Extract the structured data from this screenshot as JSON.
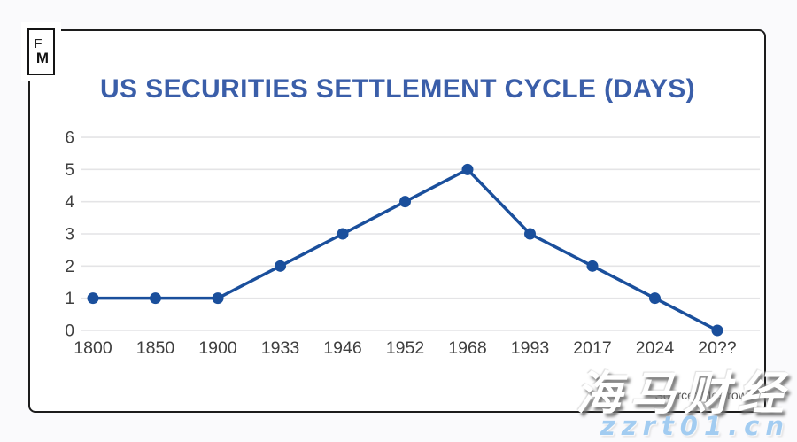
{
  "page": {
    "background": "#FAFAFC"
  },
  "logo": {
    "line1": "F",
    "line2": "M"
  },
  "chart_data": {
    "type": "line",
    "title": "US SECURITIES SETTLEMENT CYCLE (DAYS)",
    "categories": [
      "1800",
      "1850",
      "1900",
      "1933",
      "1946",
      "1952",
      "1968",
      "1993",
      "2017",
      "2024",
      "20??"
    ],
    "values": [
      1,
      1,
      1,
      2,
      3,
      4,
      5,
      3,
      2,
      1,
      0
    ],
    "xlabel": "",
    "ylabel": "",
    "ylim": [
      0,
      6
    ],
    "yticks": [
      0,
      1,
      2,
      3,
      4,
      5,
      6
    ],
    "grid": true,
    "legend": "none",
    "line_color": "#1A4F9C",
    "point_color": "#1A4F9C",
    "grid_color": "#E4E4E6",
    "tick_color": "#3F3F3F",
    "title_color": "#3A5EA9"
  },
  "source": {
    "label": "Source: Mesirow T"
  },
  "watermarks": {
    "primary": "海马财经",
    "secondary": "zzrt01.cn"
  }
}
